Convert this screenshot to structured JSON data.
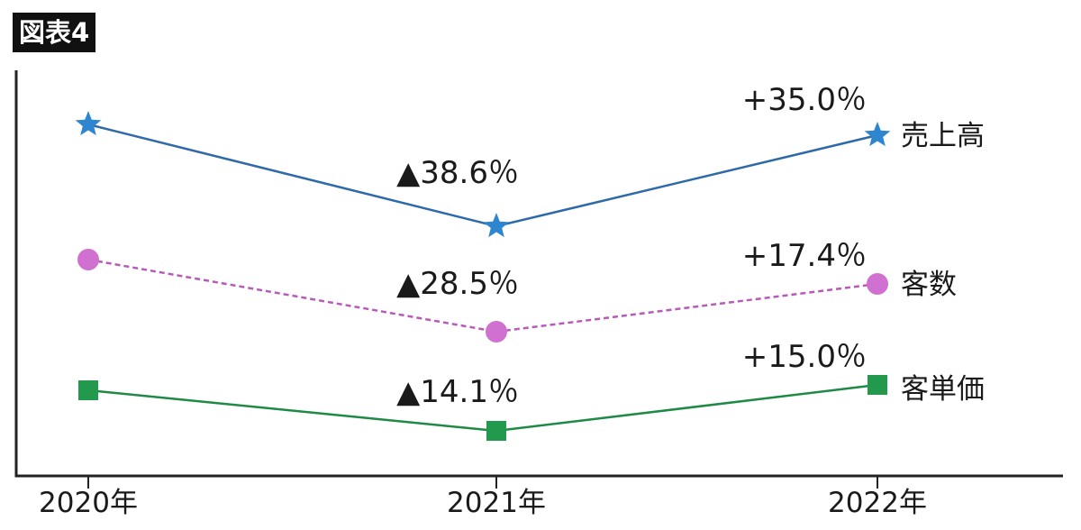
{
  "figure_label": "図表4",
  "chart_data": {
    "type": "line",
    "categories": [
      "2020年",
      "2021年",
      "2022年"
    ],
    "y_axis": "no scale, no tick labels; each series drawn on its own relative (indexed) scale",
    "series": [
      {
        "name": "売上高",
        "marker": "star",
        "line_style": "solid",
        "color": "#2e6aa8",
        "marker_color": "#2f86d0",
        "changes": [
          null,
          "▲38.6％",
          "+35.0％"
        ]
      },
      {
        "name": "客数",
        "marker": "circle",
        "line_style": "dashed",
        "color": "#b85bb8",
        "marker_color": "#d070d0",
        "changes": [
          null,
          "▲28.5％",
          "+17.4％"
        ]
      },
      {
        "name": "客単価",
        "marker": "square",
        "line_style": "solid",
        "color": "#1e8a45",
        "marker_color": "#22994d",
        "changes": [
          null,
          "▲14.1％",
          "+15.0％"
        ]
      }
    ],
    "legend": "inline labels at right end of each line",
    "grid": false
  }
}
